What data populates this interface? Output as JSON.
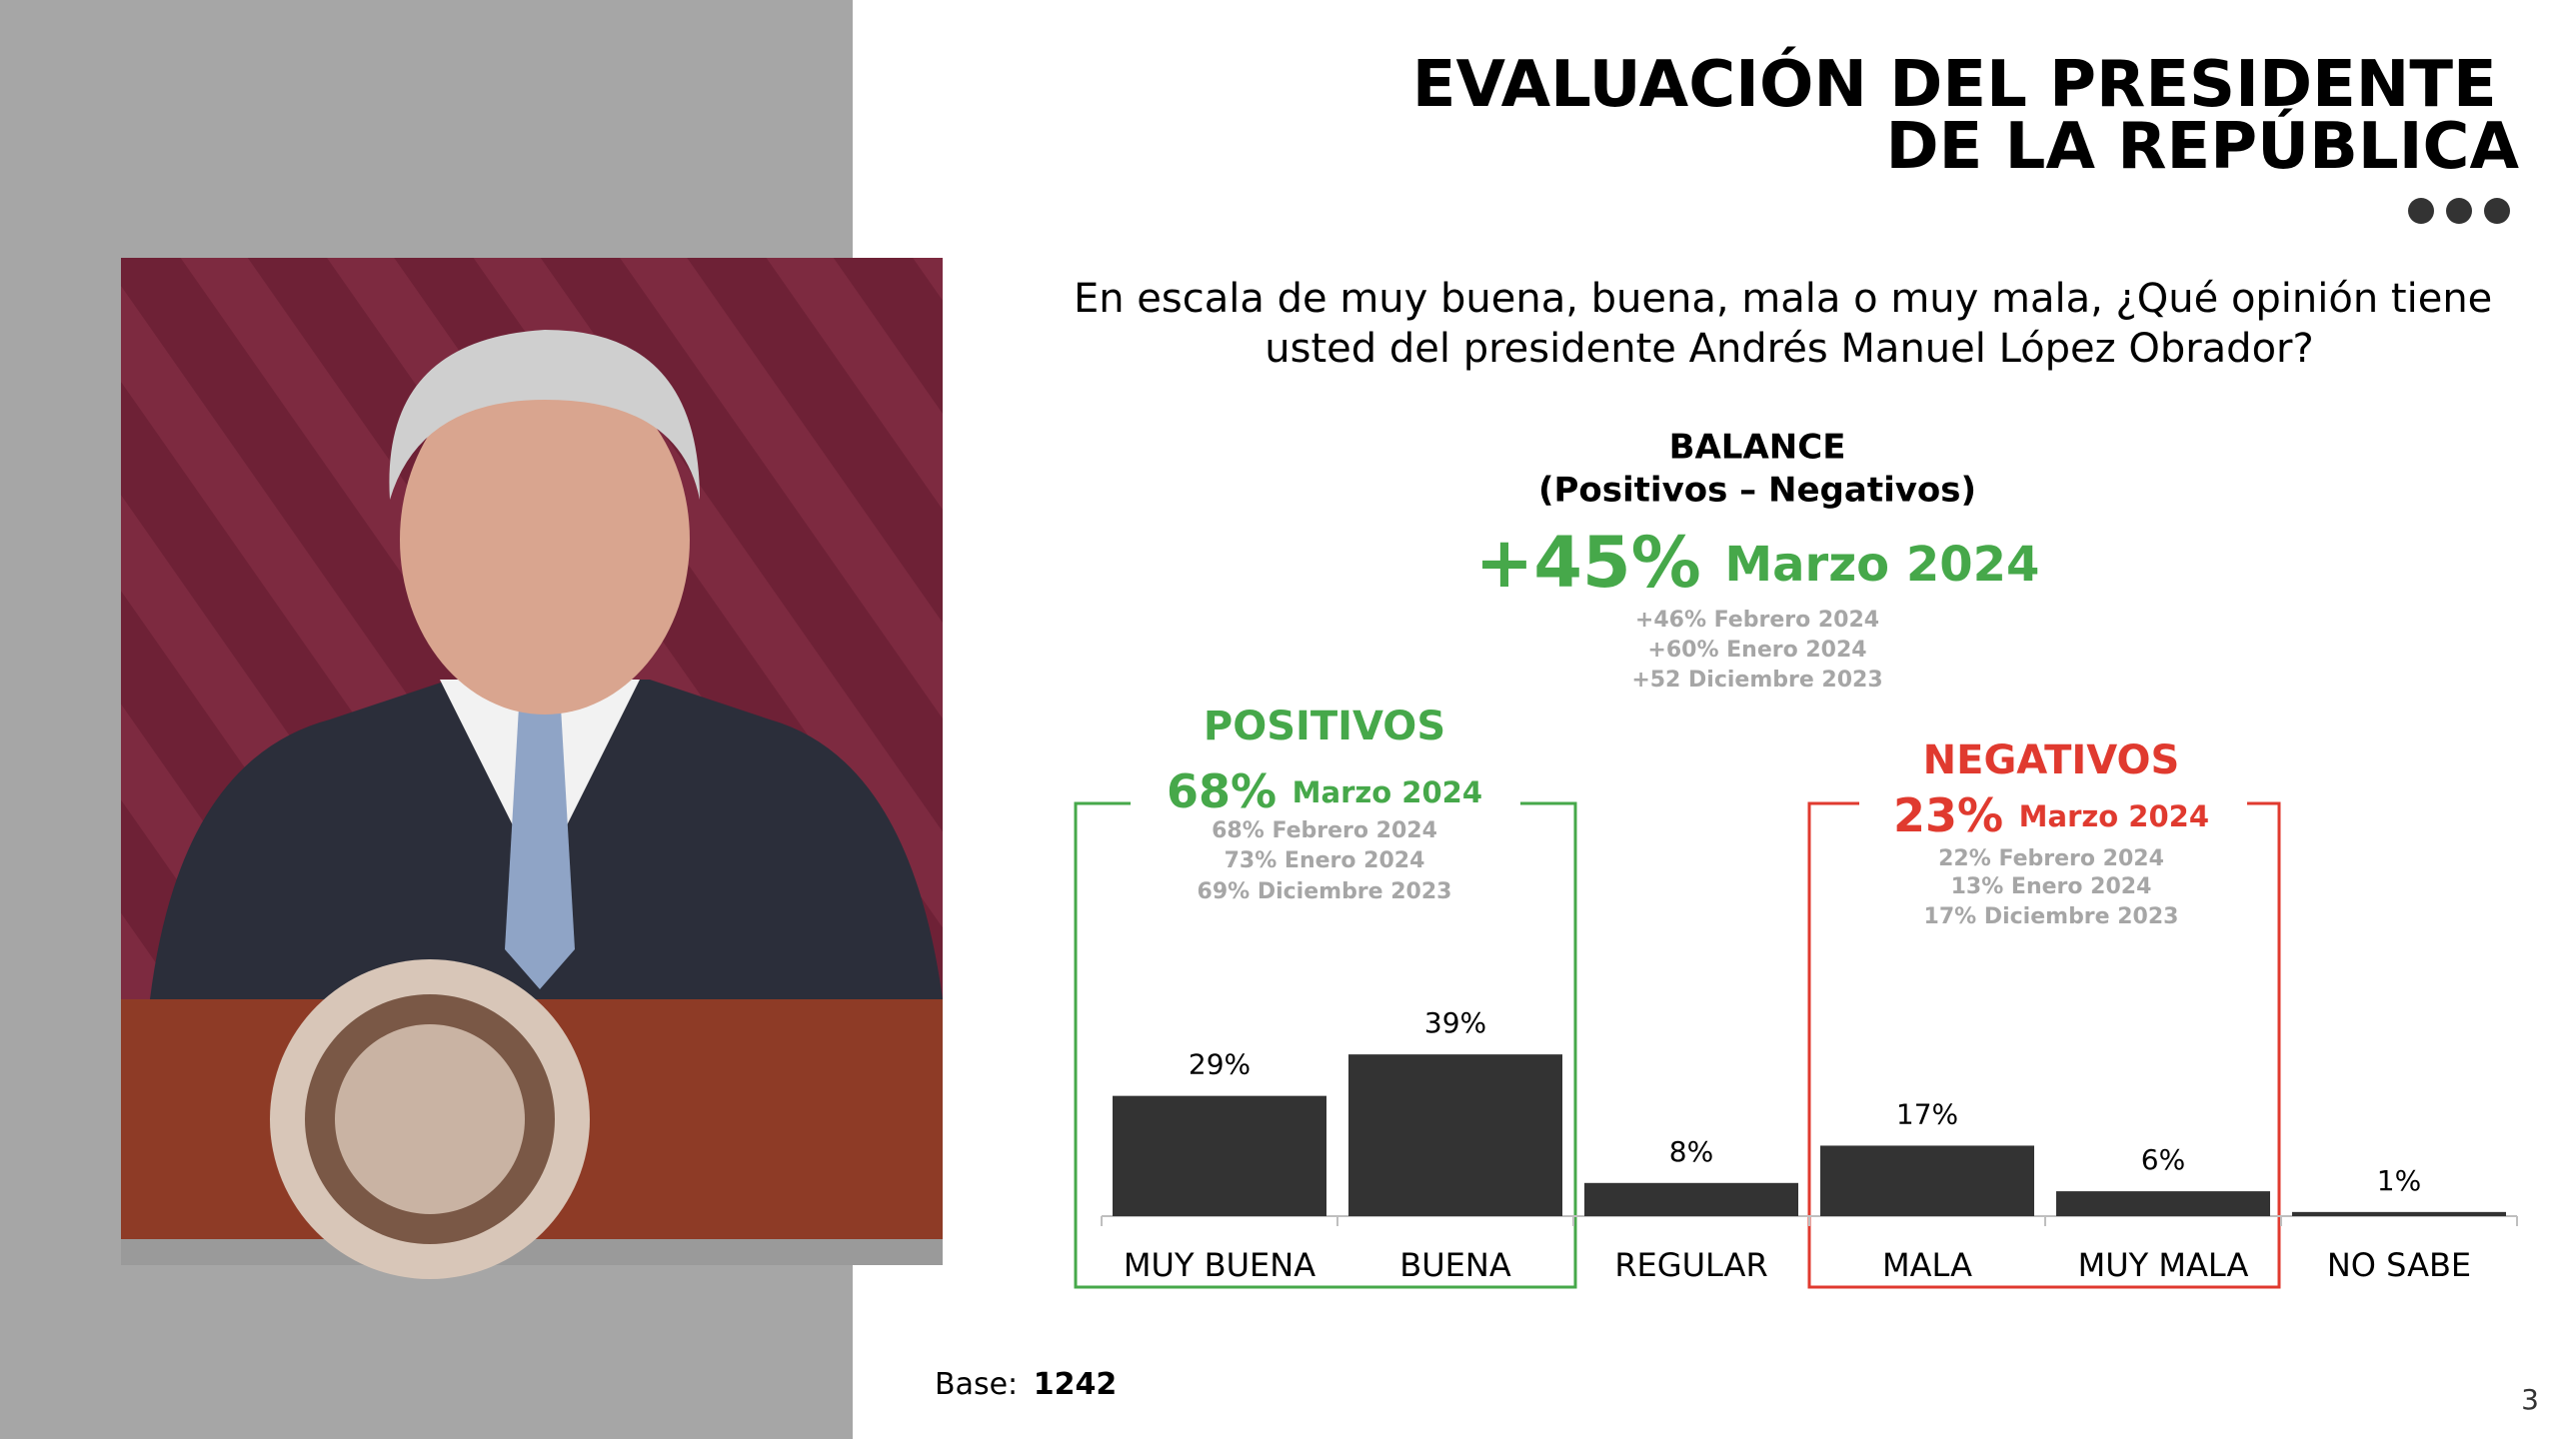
{
  "header": {
    "title_lines": [
      "EVALUACIÓN DEL PRESIDENTE",
      "DE LA REPÚBLICA"
    ],
    "question_lines": [
      "En escala de muy buena, buena, mala o muy mala, ¿Qué opinión tiene",
      "usted del presidente Andrés Manuel López Obrador?"
    ]
  },
  "balance": {
    "title": "BALANCE",
    "subtitle": "(Positivos – Negativos)",
    "value": "+45%",
    "period": "Marzo 2024",
    "history": [
      "+46% Febrero 2024",
      "+60% Enero 2024",
      "+52 Diciembre 2023"
    ]
  },
  "positivos": {
    "title": "POSITIVOS",
    "value": "68%",
    "period": "Marzo 2024",
    "history": [
      "68% Febrero 2024",
      "73% Enero 2024",
      "69% Diciembre 2023"
    ]
  },
  "negativos": {
    "title": "NEGATIVOS",
    "value": "23%",
    "period": "Marzo 2024",
    "history": [
      "22% Febrero 2024",
      "13% Enero 2024",
      "17% Diciembre 2023"
    ]
  },
  "chart_data": {
    "type": "bar",
    "categories": [
      "MUY BUENA",
      "BUENA",
      "REGULAR",
      "MALA",
      "MUY MALA",
      "NO SABE"
    ],
    "values": [
      29,
      39,
      8,
      17,
      6,
      1
    ],
    "value_labels": [
      "29%",
      "39%",
      "8%",
      "17%",
      "6%",
      "1%"
    ],
    "color": "#333333"
  },
  "footer": {
    "base_label": "Base:",
    "base_value": "1242",
    "page_number": "3"
  }
}
